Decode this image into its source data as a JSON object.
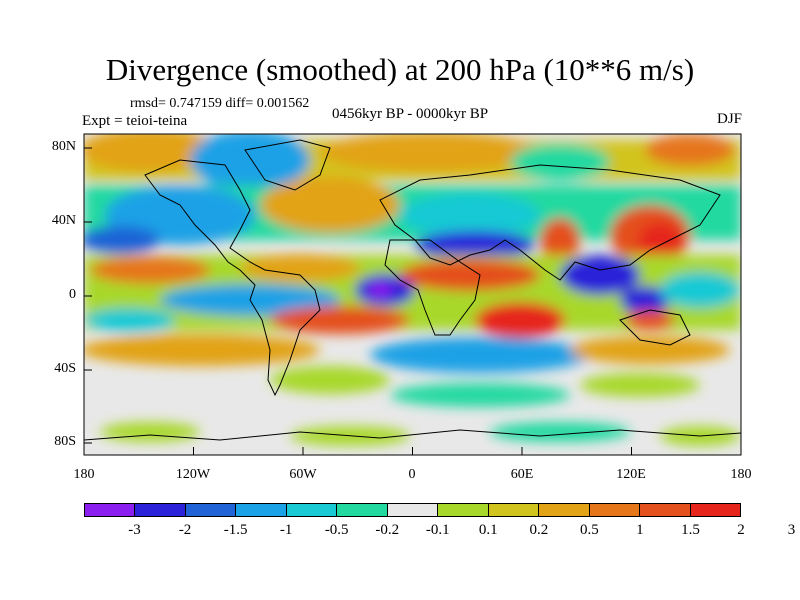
{
  "title": "Divergence (smoothed) at 200 hPa (10**6 m/s)",
  "stats": "rmsd= 0.747159 diff= 0.001562",
  "experiment": "Expt = teioi-teina",
  "period": "0456kyr BP - 0000kyr BP",
  "season": "DJF",
  "map": {
    "y_ticks": [
      "80N",
      "40N",
      "0",
      "40S",
      "80S"
    ],
    "x_ticks": [
      "180",
      "120W",
      "60W",
      "0",
      "60E",
      "120E",
      "180"
    ]
  },
  "colorbar": {
    "colors": [
      "#8a1ff0",
      "#2b22d9",
      "#1f63d6",
      "#1aa1e6",
      "#19c9d4",
      "#22d9a0",
      "#e8e8e8",
      "#a8d82a",
      "#d2c41e",
      "#e2a317",
      "#e6761a",
      "#e4501e",
      "#e6261c"
    ],
    "labels": [
      "-3",
      "-2",
      "-1.5",
      "-1",
      "-0.5",
      "-0.2",
      "-0.1",
      "0.1",
      "0.2",
      "0.5",
      "1",
      "1.5",
      "2",
      "3"
    ]
  }
}
